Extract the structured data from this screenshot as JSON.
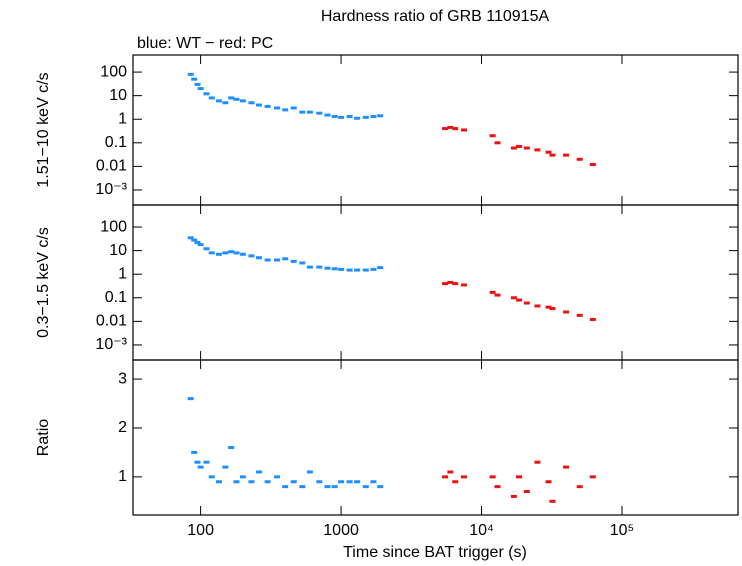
{
  "chart_data": [
    {
      "type": "scatter",
      "title": "Hardness ratio of GRB 110915A",
      "subtitle": "blue: WT − red: PC",
      "ylabel": "1.51−10 keV c/s",
      "log_x": true,
      "log_y": true,
      "xlim": [
        33,
        670000
      ],
      "ylim": [
        0.00023,
        530
      ],
      "yticks": [
        {
          "value": 0.001,
          "label": "10⁻³"
        },
        0.01,
        0.1,
        1,
        10,
        100
      ],
      "series": [
        {
          "color": "#1f8fff",
          "x": [
            85,
            90,
            95,
            100,
            110,
            120,
            135,
            150,
            165,
            180,
            200,
            230,
            260,
            300,
            350,
            400,
            460,
            530,
            600,
            700,
            800,
            900,
            1000,
            1150,
            1300,
            1500,
            1700,
            1900
          ],
          "values": [
            80,
            50,
            30,
            20,
            12,
            8,
            6,
            5,
            8,
            7,
            6,
            5,
            4,
            3.5,
            3,
            2.5,
            3,
            2,
            2,
            1.8,
            1.5,
            1.3,
            1.2,
            1.3,
            1.1,
            1.2,
            1.3,
            1.4
          ]
        },
        {
          "color": "#ee1111",
          "x": [
            5500,
            6000,
            6500,
            7500,
            12000,
            13000,
            17000,
            18500,
            21000,
            25000,
            30000,
            32000,
            40000,
            50000,
            62000
          ],
          "values": [
            0.4,
            0.45,
            0.4,
            0.35,
            0.2,
            0.1,
            0.06,
            0.07,
            0.06,
            0.05,
            0.04,
            0.03,
            0.03,
            0.02,
            0.012
          ]
        }
      ]
    },
    {
      "type": "scatter",
      "ylabel": "0.3−1.5 keV c/s",
      "log_x": true,
      "log_y": true,
      "xlim": [
        33,
        670000
      ],
      "ylim": [
        0.00023,
        860
      ],
      "yticks": [
        {
          "value": 0.001,
          "label": "10⁻³"
        },
        0.01,
        0.1,
        1,
        10,
        100
      ],
      "series": [
        {
          "color": "#1f8fff",
          "x": [
            85,
            90,
            95,
            100,
            110,
            120,
            135,
            150,
            165,
            180,
            200,
            230,
            260,
            300,
            350,
            400,
            460,
            530,
            600,
            700,
            800,
            900,
            1000,
            1150,
            1300,
            1500,
            1700,
            1900
          ],
          "values": [
            35,
            28,
            22,
            18,
            12,
            8,
            7,
            8,
            9,
            8,
            7,
            6,
            5,
            4,
            4,
            4.5,
            3.5,
            3,
            2,
            2,
            1.8,
            1.7,
            1.6,
            1.5,
            1.5,
            1.5,
            1.6,
            1.9
          ]
        },
        {
          "color": "#ee1111",
          "x": [
            5500,
            6000,
            6500,
            7500,
            12000,
            13000,
            17000,
            18500,
            21000,
            25000,
            30000,
            32000,
            40000,
            50000,
            62000
          ],
          "values": [
            0.4,
            0.45,
            0.4,
            0.35,
            0.17,
            0.13,
            0.1,
            0.08,
            0.06,
            0.045,
            0.04,
            0.035,
            0.025,
            0.018,
            0.012
          ]
        }
      ]
    },
    {
      "type": "scatter",
      "ylabel": "Ratio",
      "xlabel": "Time since BAT trigger (s)",
      "log_x": true,
      "log_y": false,
      "xlim": [
        33,
        670000
      ],
      "ylim": [
        0.22,
        3.39
      ],
      "xticks": [
        100,
        1000,
        {
          "value": 10000,
          "label": "10⁴"
        },
        {
          "value": 100000,
          "label": "10⁵"
        }
      ],
      "yticks": [
        1,
        2,
        3
      ],
      "series": [
        {
          "color": "#1f8fff",
          "x": [
            85,
            90,
            95,
            100,
            110,
            120,
            135,
            150,
            165,
            180,
            200,
            230,
            260,
            300,
            350,
            400,
            460,
            530,
            600,
            700,
            800,
            900,
            1000,
            1150,
            1300,
            1500,
            1700,
            1900
          ],
          "values": [
            2.6,
            1.5,
            1.3,
            1.2,
            1.3,
            1.0,
            0.9,
            1.2,
            1.6,
            0.9,
            1.0,
            0.9,
            1.1,
            0.9,
            1.0,
            0.8,
            0.9,
            0.8,
            1.1,
            0.9,
            0.8,
            0.8,
            0.9,
            0.9,
            0.9,
            0.8,
            0.9,
            0.8
          ]
        },
        {
          "color": "#ee1111",
          "x": [
            5500,
            6000,
            6500,
            7500,
            12000,
            13000,
            17000,
            18500,
            21000,
            25000,
            30000,
            32000,
            40000,
            50000,
            62000
          ],
          "values": [
            1.0,
            1.1,
            0.9,
            1.0,
            1.0,
            0.8,
            0.6,
            1.0,
            0.7,
            1.3,
            0.9,
            0.5,
            1.2,
            0.8,
            1.0
          ]
        }
      ]
    }
  ]
}
